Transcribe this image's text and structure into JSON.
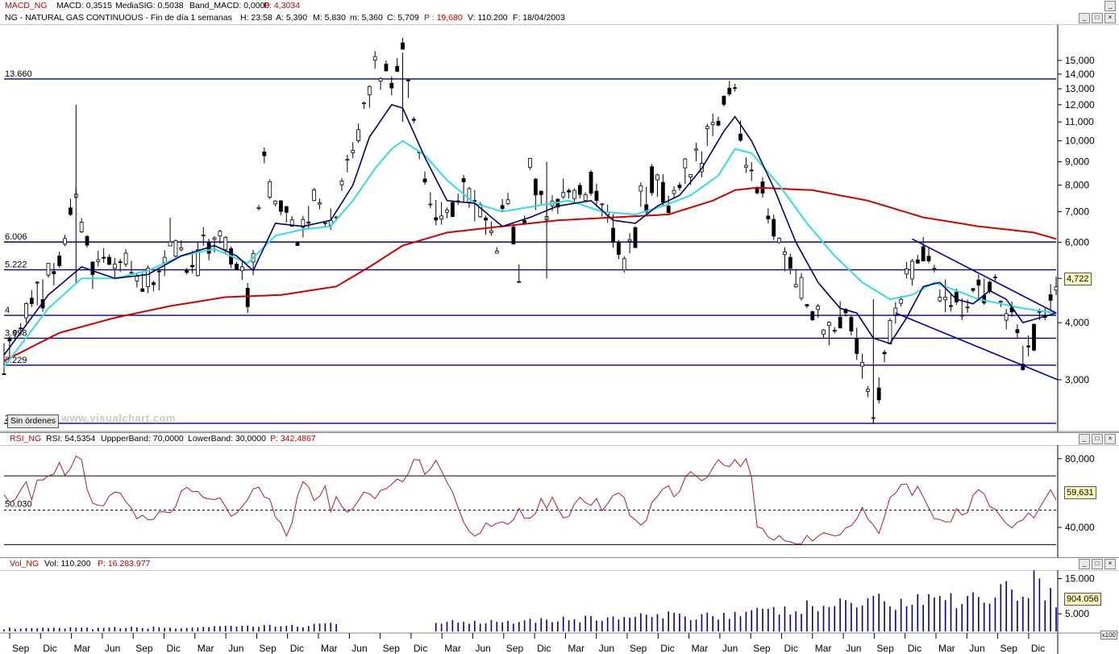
{
  "macd_header": {
    "name": "MACD_NG",
    "macd": "MACD: 0,3515",
    "signal": "MediaSIG: 0,5038",
    "band": "Band_MACD: 0,0000",
    "p": "P: 4,3034"
  },
  "price_header": {
    "text": "NG - NATURAL GAS CONTINUOUS - Fin de día 1 semanas",
    "h": "H: 23:58",
    "a": "A: 5,390",
    "m": "M: 5,830",
    "mn": "m: 5,360",
    "c": "C: 5,709",
    "p": "P : 19,680",
    "v": "V: 110.200",
    "f": "F: 18/04/2003"
  },
  "rsi_header": {
    "name": "RSI_NG",
    "rsi": "RSI: 54,5354",
    "upper": "UppperBand: 70,0000",
    "lower": "LowerBand: 30,0000",
    "p": "P: 342,4867"
  },
  "vol_header": {
    "name": "Vol_NG",
    "vol": "Vol: 110.200",
    "p": "P: 16.283.977"
  },
  "buttons": {
    "sin_ordenes": "Sin órdenes",
    "x100": "x100"
  },
  "watermark": "www.visualchart.com",
  "price_last": "4,722",
  "rsi_last": "59,631",
  "vol_last": "904.056",
  "level_labels": [
    "13.660",
    "6.006",
    "5.222",
    "4",
    "3.698",
    "3.229",
    "2.409"
  ],
  "rsi_level_label": "50.030",
  "colors": {
    "candles": "#000000",
    "ma_fast": "#000066",
    "ma_mid": "#33dddd",
    "ma_slow": "#cc0000",
    "levels": "#000080",
    "rsi": "#aa2222",
    "volume": "#000080"
  },
  "chart_data": [
    {
      "type": "candlestick",
      "title": "NG - NATURAL GAS CONTINUOUS",
      "scale": "log",
      "y_ticks": [
        "15,000",
        "14,000",
        "13,000",
        "12,000",
        "11,000",
        "10,000",
        "9,000",
        "8,000",
        "7,000",
        "6,000",
        "5,000",
        "4,000",
        "3,000"
      ],
      "y_tick_values": [
        15,
        14,
        13,
        12,
        11,
        10,
        9,
        8,
        7,
        6,
        5,
        4,
        3
      ],
      "ylim": [
        2.35,
        17.5
      ],
      "x_labels": [
        "Sep",
        "Dic",
        "Mar",
        "Jun",
        "Sep",
        "Dic",
        "Mar",
        "Jun",
        "Sep",
        "Dic",
        "Mar",
        "Jun",
        "Sep",
        "Dic",
        "Mar",
        "Jun",
        "Sep",
        "Dic",
        "Mar",
        "Jun",
        "Sep",
        "Dic",
        "Mar",
        "Jun",
        "Sep",
        "Dic",
        "Mar",
        "Jun",
        "Sep",
        "Dic",
        "Mar",
        "Jun",
        "Sep",
        "Dic"
      ],
      "horizontal_levels": [
        13.66,
        6.006,
        5.222,
        4.15,
        3.698,
        3.229,
        2.409
      ],
      "close_path": [
        [
          0,
          3.5
        ],
        [
          6,
          4.6
        ],
        [
          10,
          5.5
        ],
        [
          13,
          7.8
        ],
        [
          16,
          5.2
        ],
        [
          20,
          5.6
        ],
        [
          24,
          4.9
        ],
        [
          28,
          4.8
        ],
        [
          30,
          6.4
        ],
        [
          33,
          5.4
        ],
        [
          36,
          5.9
        ],
        [
          39,
          6.1
        ],
        [
          42,
          5.3
        ],
        [
          44,
          4.7
        ],
        [
          47,
          8.9
        ],
        [
          50,
          7.0
        ],
        [
          53,
          6.3
        ],
        [
          56,
          7.4
        ],
        [
          59,
          6.6
        ],
        [
          62,
          8.2
        ],
        [
          64,
          10.5
        ],
        [
          67,
          14.2
        ],
        [
          70,
          13.8
        ],
        [
          72,
          15.3
        ],
        [
          74,
          10.8
        ],
        [
          77,
          7.5
        ],
        [
          80,
          6.9
        ],
        [
          83,
          7.8
        ],
        [
          86,
          6.8
        ],
        [
          89,
          5.9
        ],
        [
          91,
          7.7
        ],
        [
          93,
          5.4
        ],
        [
          95,
          8.4
        ],
        [
          98,
          6.7
        ],
        [
          101,
          7.7
        ],
        [
          104,
          7.6
        ],
        [
          107,
          7.9
        ],
        [
          110,
          6.2
        ],
        [
          112,
          5.3
        ],
        [
          115,
          7.4
        ],
        [
          117,
          8.1
        ],
        [
          120,
          7.2
        ],
        [
          123,
          8.1
        ],
        [
          126,
          9.6
        ],
        [
          129,
          11.4
        ],
        [
          132,
          13.7
        ],
        [
          134,
          9.2
        ],
        [
          137,
          7.4
        ],
        [
          140,
          6.1
        ],
        [
          143,
          5.1
        ],
        [
          146,
          4.1
        ],
        [
          149,
          3.7
        ],
        [
          152,
          4.3
        ],
        [
          155,
          3.3
        ],
        [
          157,
          2.6
        ],
        [
          160,
          3.9
        ],
        [
          163,
          4.8
        ],
        [
          166,
          5.9
        ],
        [
          169,
          4.6
        ],
        [
          172,
          4.3
        ],
        [
          175,
          4.6
        ],
        [
          178,
          5.0
        ],
        [
          181,
          4.3
        ],
        [
          184,
          3.5
        ],
        [
          187,
          4.0
        ],
        [
          190,
          4.7
        ]
      ],
      "ma_fast": [
        [
          0,
          3.4
        ],
        [
          8,
          4.6
        ],
        [
          14,
          5.3
        ],
        [
          20,
          5.0
        ],
        [
          26,
          5.1
        ],
        [
          32,
          5.6
        ],
        [
          38,
          5.9
        ],
        [
          42,
          5.6
        ],
        [
          45,
          5.2
        ],
        [
          49,
          6.6
        ],
        [
          54,
          6.5
        ],
        [
          59,
          6.7
        ],
        [
          63,
          8.0
        ],
        [
          66,
          10.2
        ],
        [
          70,
          12.0
        ],
        [
          72,
          11.8
        ],
        [
          76,
          9.2
        ],
        [
          80,
          7.4
        ],
        [
          85,
          7.3
        ],
        [
          90,
          6.5
        ],
        [
          95,
          6.8
        ],
        [
          100,
          7.2
        ],
        [
          106,
          7.4
        ],
        [
          110,
          6.7
        ],
        [
          114,
          6.6
        ],
        [
          118,
          7.2
        ],
        [
          122,
          7.6
        ],
        [
          126,
          8.7
        ],
        [
          130,
          10.5
        ],
        [
          132,
          11.3
        ],
        [
          135,
          10.0
        ],
        [
          139,
          7.9
        ],
        [
          143,
          6.0
        ],
        [
          147,
          4.9
        ],
        [
          151,
          4.3
        ],
        [
          154,
          4.2
        ],
        [
          157,
          3.7
        ],
        [
          160,
          3.6
        ],
        [
          163,
          4.1
        ],
        [
          166,
          4.8
        ],
        [
          169,
          4.9
        ],
        [
          172,
          4.5
        ],
        [
          175,
          4.4
        ],
        [
          178,
          4.7
        ],
        [
          181,
          4.5
        ],
        [
          184,
          4.0
        ],
        [
          187,
          4.1
        ],
        [
          190,
          4.2
        ]
      ],
      "ma_mid": [
        [
          0,
          3.2
        ],
        [
          8,
          4.3
        ],
        [
          14,
          5.0
        ],
        [
          20,
          5.0
        ],
        [
          26,
          5.2
        ],
        [
          32,
          5.6
        ],
        [
          38,
          5.8
        ],
        [
          44,
          5.4
        ],
        [
          49,
          6.2
        ],
        [
          54,
          6.4
        ],
        [
          59,
          6.5
        ],
        [
          63,
          7.4
        ],
        [
          67,
          8.7
        ],
        [
          70,
          9.6
        ],
        [
          72,
          10.0
        ],
        [
          76,
          9.3
        ],
        [
          80,
          8.2
        ],
        [
          85,
          7.3
        ],
        [
          90,
          7.0
        ],
        [
          96,
          7.2
        ],
        [
          102,
          7.4
        ],
        [
          108,
          7.0
        ],
        [
          114,
          6.9
        ],
        [
          119,
          7.2
        ],
        [
          124,
          7.6
        ],
        [
          129,
          8.4
        ],
        [
          132,
          9.6
        ],
        [
          135,
          9.4
        ],
        [
          140,
          8.0
        ],
        [
          145,
          6.6
        ],
        [
          150,
          5.6
        ],
        [
          155,
          4.9
        ],
        [
          160,
          4.5
        ],
        [
          164,
          4.6
        ],
        [
          168,
          4.9
        ],
        [
          172,
          4.7
        ],
        [
          176,
          4.5
        ],
        [
          180,
          4.4
        ],
        [
          184,
          4.3
        ],
        [
          190,
          4.2
        ]
      ],
      "ma_slow": [
        [
          0,
          3.3
        ],
        [
          10,
          3.8
        ],
        [
          20,
          4.1
        ],
        [
          30,
          4.35
        ],
        [
          40,
          4.55
        ],
        [
          50,
          4.6
        ],
        [
          60,
          4.8
        ],
        [
          66,
          5.3
        ],
        [
          72,
          5.9
        ],
        [
          80,
          6.3
        ],
        [
          90,
          6.5
        ],
        [
          100,
          6.7
        ],
        [
          110,
          6.8
        ],
        [
          120,
          6.9
        ],
        [
          128,
          7.4
        ],
        [
          132,
          7.8
        ],
        [
          136,
          7.9
        ],
        [
          146,
          7.8
        ],
        [
          156,
          7.4
        ],
        [
          166,
          6.8
        ],
        [
          176,
          6.5
        ],
        [
          186,
          6.3
        ],
        [
          190,
          6.1
        ]
      ],
      "trendline_upper": [
        [
          164,
          6.1
        ],
        [
          190,
          4.2
        ]
      ],
      "trendline_lower": [
        [
          161,
          4.2
        ],
        [
          190,
          3.0
        ]
      ],
      "last_value": 4.722
    },
    {
      "type": "line",
      "title": "RSI_NG",
      "y_ticks": [
        "80,000",
        "40,000"
      ],
      "y_tick_values": [
        80,
        40
      ],
      "ylim": [
        25,
        86
      ],
      "bands": [
        70,
        30
      ],
      "mid_level": 50.03,
      "values": [
        62,
        55,
        61,
        65,
        58,
        70,
        66,
        72,
        75,
        68,
        78,
        82,
        60,
        52,
        48,
        55,
        62,
        58,
        50,
        45,
        48,
        43,
        52,
        47,
        50,
        56,
        62,
        58,
        65,
        52,
        60,
        55,
        48,
        46,
        52,
        58,
        64,
        60,
        55,
        48,
        40,
        34,
        56,
        70,
        62,
        55,
        66,
        50,
        58,
        52,
        48,
        56,
        60,
        55,
        62,
        64,
        70,
        66,
        74,
        80,
        75,
        70,
        78,
        72,
        65,
        55,
        40,
        36,
        38,
        42,
        40,
        44,
        46,
        42,
        50,
        45,
        48,
        55,
        52,
        58,
        44,
        48,
        54,
        60,
        52,
        56,
        50,
        58,
        62,
        55,
        48,
        42,
        44,
        56,
        60,
        66,
        58,
        62,
        68,
        72,
        65,
        70,
        76,
        80,
        74,
        78,
        75,
        82,
        42,
        38,
        35,
        36,
        33,
        34,
        32,
        35,
        34,
        32,
        36,
        35,
        34,
        38,
        46,
        50,
        45,
        44,
        36,
        56,
        62,
        66,
        60,
        64,
        58,
        50,
        44,
        40,
        46,
        52,
        48,
        56,
        62,
        54,
        50,
        46,
        42,
        38,
        44,
        50,
        48,
        56,
        60,
        58
      ],
      "last_value": 59.631
    },
    {
      "type": "bar",
      "title": "Vol_NG",
      "y_ticks": [
        "15.000",
        "5.000"
      ],
      "y_tick_values": [
        15000,
        5000
      ],
      "ylim": [
        0,
        16500
      ],
      "units": "x100",
      "values": [
        800,
        900,
        700,
        850,
        950,
        800,
        900,
        1000,
        850,
        900,
        1100,
        950,
        1000,
        1200,
        1050,
        1100,
        1000,
        950,
        1150,
        1200,
        1100,
        1300,
        1250,
        1400,
        1500,
        1350,
        1600,
        1500,
        1700,
        1650,
        1800,
        1900,
        2000,
        2100,
        1950,
        2200,
        2300,
        2400,
        2300,
        2500,
        2600,
        2500,
        2700,
        2600,
        2800,
        2900,
        3000,
        2800,
        3100,
        3200,
        3000,
        3300,
        3400,
        3500,
        3300,
        3600,
        3400,
        3700,
        3800,
        3900,
        4000,
        3800,
        4200,
        4100,
        4300,
        4500,
        4400,
        4600,
        4800,
        4700,
        5000,
        4900,
        5200,
        5400,
        5300,
        5600,
        6000,
        5800,
        7000,
        6500,
        8000,
        7200,
        9000,
        7500,
        10000,
        8000,
        7800,
        9500,
        8200,
        8800,
        12000,
        9000,
        8600,
        11000,
        9500,
        10500,
        9800,
        13500,
        10800,
        11500,
        15000,
        12000,
        9040
      ],
      "last_value": 904.056
    }
  ]
}
